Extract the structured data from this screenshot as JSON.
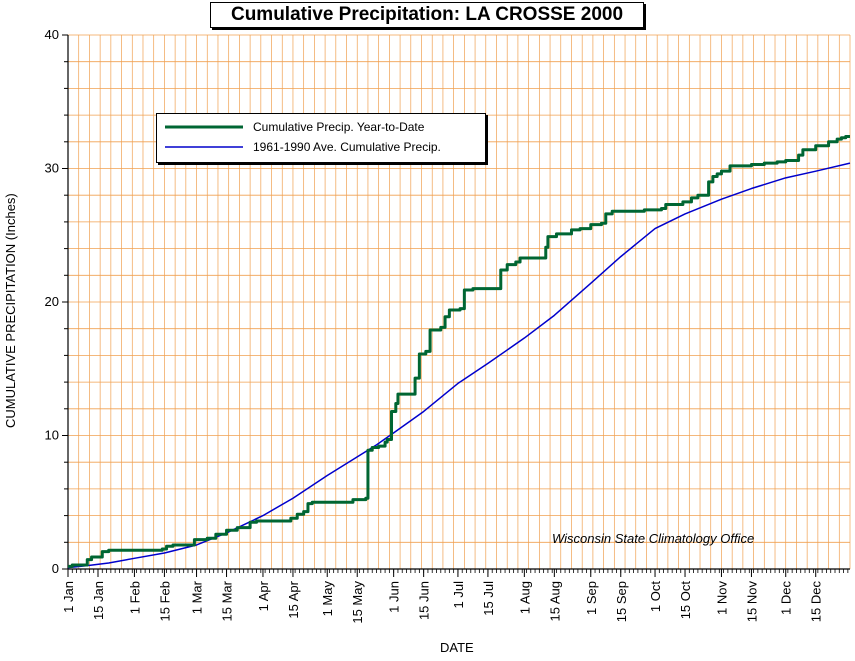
{
  "chart_data": {
    "type": "line",
    "title": "Cumulative Precipitation: LA CROSSE 2000",
    "xlabel": "DATE",
    "ylabel": "CUMULATIVE PRECIPITATION (Inches)",
    "ylim": [
      0,
      40
    ],
    "y_ticks": [
      "0",
      "10",
      "20",
      "30",
      "40"
    ],
    "x_range_days": [
      1,
      366
    ],
    "x_tick_labels": [
      "1 Jan",
      "15 Jan",
      "1 Feb",
      "15 Feb",
      "1 Mar",
      "15 Mar",
      "1 Apr",
      "15 Apr",
      "1 May",
      "15 May",
      "1 Jun",
      "15 Jun",
      "1 Jul",
      "15 Jul",
      "1 Aug",
      "15 Aug",
      "1 Sep",
      "15 Sep",
      "1 Oct",
      "15 Oct",
      "1 Nov",
      "15 Nov",
      "1 Dec",
      "15 Dec"
    ],
    "x_tick_days": [
      1,
      15,
      32,
      46,
      61,
      75,
      92,
      106,
      122,
      136,
      153,
      167,
      183,
      197,
      214,
      228,
      245,
      259,
      275,
      289,
      306,
      320,
      336,
      350
    ],
    "grid": true,
    "legend_position": "upper-left",
    "annotation": "Wisconsin State Climatology Office",
    "colors": {
      "year_to_date": "#006633",
      "normal": "#0000cc",
      "grid": "#f0a050"
    },
    "series": [
      {
        "name": "Cumulative Precip. Year-to-Date",
        "step": true,
        "points": [
          [
            1,
            0.2
          ],
          [
            3,
            0.3
          ],
          [
            8,
            0.3
          ],
          [
            10,
            0.7
          ],
          [
            12,
            0.9
          ],
          [
            15,
            0.9
          ],
          [
            17,
            1.3
          ],
          [
            20,
            1.4
          ],
          [
            35,
            1.4
          ],
          [
            45,
            1.5
          ],
          [
            47,
            1.7
          ],
          [
            50,
            1.8
          ],
          [
            58,
            1.8
          ],
          [
            60,
            2.2
          ],
          [
            66,
            2.3
          ],
          [
            70,
            2.6
          ],
          [
            75,
            2.9
          ],
          [
            80,
            3.1
          ],
          [
            84,
            3.1
          ],
          [
            86,
            3.5
          ],
          [
            89,
            3.6
          ],
          [
            100,
            3.6
          ],
          [
            105,
            3.8
          ],
          [
            108,
            4.1
          ],
          [
            111,
            4.3
          ],
          [
            113,
            4.9
          ],
          [
            115,
            5.0
          ],
          [
            130,
            5.0
          ],
          [
            134,
            5.2
          ],
          [
            140,
            5.3
          ],
          [
            141,
            8.9
          ],
          [
            143,
            9.1
          ],
          [
            146,
            9.2
          ],
          [
            149,
            9.5
          ],
          [
            150,
            9.7
          ],
          [
            152,
            11.8
          ],
          [
            154,
            12.4
          ],
          [
            155,
            13.1
          ],
          [
            161,
            13.1
          ],
          [
            163,
            14.3
          ],
          [
            165,
            16.1
          ],
          [
            168,
            16.3
          ],
          [
            170,
            17.9
          ],
          [
            172,
            17.9
          ],
          [
            175,
            18.1
          ],
          [
            177,
            18.9
          ],
          [
            179,
            19.4
          ],
          [
            184,
            19.5
          ],
          [
            186,
            20.9
          ],
          [
            190,
            21.0
          ],
          [
            200,
            21.0
          ],
          [
            203,
            22.4
          ],
          [
            206,
            22.8
          ],
          [
            210,
            23.0
          ],
          [
            212,
            23.3
          ],
          [
            220,
            23.3
          ],
          [
            224,
            24.1
          ],
          [
            225,
            24.9
          ],
          [
            229,
            25.1
          ],
          [
            233,
            25.1
          ],
          [
            236,
            25.4
          ],
          [
            240,
            25.5
          ],
          [
            245,
            25.8
          ],
          [
            250,
            25.9
          ],
          [
            252,
            26.6
          ],
          [
            255,
            26.8
          ],
          [
            270,
            26.9
          ],
          [
            278,
            27.0
          ],
          [
            280,
            27.3
          ],
          [
            288,
            27.5
          ],
          [
            292,
            27.8
          ],
          [
            295,
            28.0
          ],
          [
            298,
            28.0
          ],
          [
            300,
            29.0
          ],
          [
            302,
            29.4
          ],
          [
            304,
            29.6
          ],
          [
            306,
            29.8
          ],
          [
            310,
            30.2
          ],
          [
            320,
            30.3
          ],
          [
            326,
            30.4
          ],
          [
            332,
            30.5
          ],
          [
            336,
            30.6
          ],
          [
            342,
            31.0
          ],
          [
            344,
            31.4
          ],
          [
            350,
            31.7
          ],
          [
            356,
            32.0
          ],
          [
            360,
            32.2
          ],
          [
            362,
            32.3
          ],
          [
            364,
            32.4
          ],
          [
            366,
            32.4
          ]
        ]
      },
      {
        "name": "1961-1990 Ave. Cumulative Precip.",
        "step": false,
        "points": [
          [
            1,
            0.1
          ],
          [
            10,
            0.25
          ],
          [
            20,
            0.45
          ],
          [
            32,
            0.8
          ],
          [
            46,
            1.2
          ],
          [
            61,
            1.8
          ],
          [
            75,
            2.7
          ],
          [
            92,
            4.0
          ],
          [
            106,
            5.3
          ],
          [
            122,
            7.0
          ],
          [
            136,
            8.4
          ],
          [
            145,
            9.3
          ],
          [
            153,
            10.2
          ],
          [
            167,
            11.8
          ],
          [
            183,
            13.9
          ],
          [
            197,
            15.4
          ],
          [
            214,
            17.3
          ],
          [
            228,
            19.0
          ],
          [
            245,
            21.4
          ],
          [
            259,
            23.4
          ],
          [
            275,
            25.5
          ],
          [
            289,
            26.6
          ],
          [
            306,
            27.7
          ],
          [
            320,
            28.5
          ],
          [
            336,
            29.3
          ],
          [
            350,
            29.8
          ],
          [
            366,
            30.4
          ]
        ]
      }
    ]
  }
}
